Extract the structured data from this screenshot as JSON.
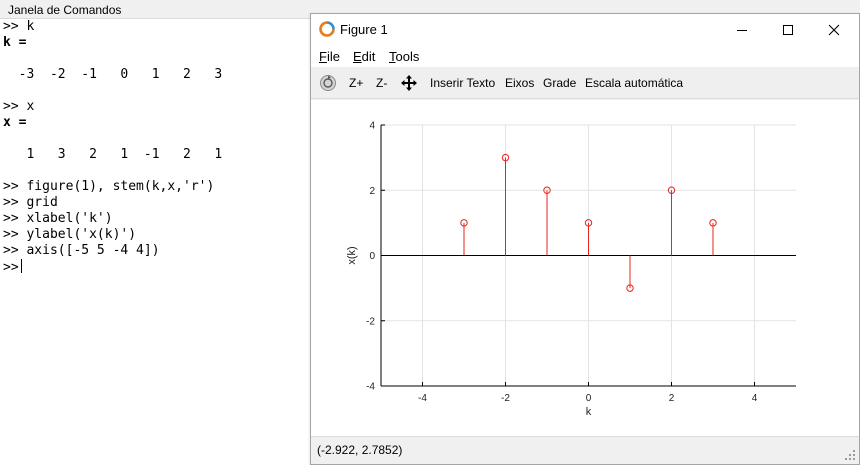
{
  "command_window": {
    "title": "Janela de Comandos",
    "lines": [
      {
        "text": ">> k",
        "bold": false
      },
      {
        "text": "k =",
        "bold": true
      },
      {
        "text": "",
        "bold": false
      },
      {
        "text": "  -3  -2  -1   0   1   2   3",
        "bold": false
      },
      {
        "text": "",
        "bold": false
      },
      {
        "text": ">> x",
        "bold": false
      },
      {
        "text": "x =",
        "bold": true
      },
      {
        "text": "",
        "bold": false
      },
      {
        "text": "   1   3   2   1  -1   2   1",
        "bold": false
      },
      {
        "text": "",
        "bold": false
      },
      {
        "text": ">> figure(1), stem(k,x,'r')",
        "bold": false
      },
      {
        "text": ">> grid",
        "bold": false
      },
      {
        "text": ">> xlabel('k')",
        "bold": false
      },
      {
        "text": ">> ylabel('x(k)')",
        "bold": false
      },
      {
        "text": ">> axis([-5 5 -4 4])",
        "bold": false
      }
    ],
    "prompt": ">>"
  },
  "figure": {
    "title": "Figure 1",
    "menu": [
      {
        "underline": "F",
        "rest": "ile"
      },
      {
        "underline": "E",
        "rest": "dit"
      },
      {
        "underline": "T",
        "rest": "ools"
      }
    ],
    "toolbar": {
      "zoom_in": "Z+",
      "zoom_out": "Z-",
      "insert_text": "Inserir Texto",
      "axes": "Eixos",
      "grid": "Grade",
      "autoscale": "Escala automática"
    },
    "status_text": "(-2.922, 2.7852)"
  },
  "icons": {
    "app": "octave-logo-icon",
    "rotate": "rotate-icon",
    "pan": "pan-arrows-icon",
    "minimize": "minimize-icon",
    "maximize": "maximize-icon",
    "close": "close-icon",
    "resize": "resize-grip-icon"
  },
  "colors": {
    "stem": "#e8251d",
    "baseline": "#000000",
    "grid": "#e3e3e3"
  },
  "chart_data": {
    "type": "scatter",
    "subtype": "stem",
    "x": [
      -3,
      -2,
      -1,
      0,
      1,
      2,
      3
    ],
    "y": [
      1,
      3,
      2,
      1,
      -1,
      2,
      1
    ],
    "xlabel": "k",
    "ylabel": "x(k)",
    "xlim": [
      -5,
      5
    ],
    "ylim": [
      -4,
      4
    ],
    "xticks": [
      -4,
      -2,
      0,
      2,
      4
    ],
    "yticks": [
      -4,
      -2,
      0,
      2,
      4
    ],
    "grid": true,
    "color": "#e8251d",
    "marker": "open-circle"
  }
}
